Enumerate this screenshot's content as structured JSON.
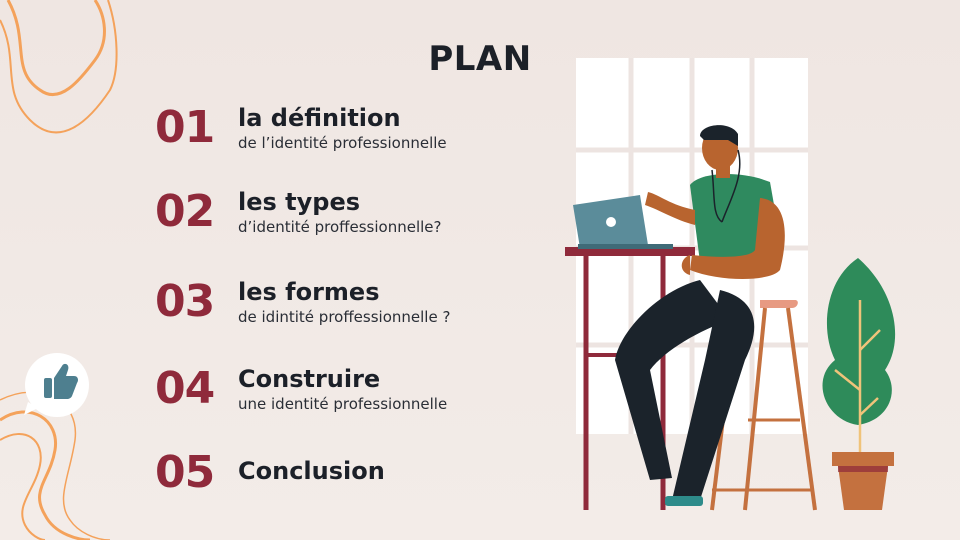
{
  "title": "PLAN",
  "items": [
    {
      "number": "01",
      "heading": "la définition",
      "subtitle": "de l’identité professionnelle"
    },
    {
      "number": "02",
      "heading": "les types",
      "subtitle": "d’identité proffessionnelle?"
    },
    {
      "number": "03",
      "heading": "les formes",
      "subtitle": "de idintité proffessionnelle ?"
    },
    {
      "number": "04",
      "heading": "Construire",
      "subtitle": "une identité professionnelle"
    },
    {
      "number": "05",
      "heading": "Conclusion",
      "subtitle": ""
    }
  ],
  "colors": {
    "accent": "#8f2a3b",
    "text": "#1c2028",
    "background": "#f1e9e5",
    "swirl": "#f4a25b",
    "plant": "#2e8b5a",
    "shirt": "#2f8a5f",
    "laptop": "#5b8c9a"
  },
  "icons": [
    "thumbs-up-icon",
    "swirl-decoration",
    "person-laptop-illustration",
    "plant-illustration"
  ]
}
